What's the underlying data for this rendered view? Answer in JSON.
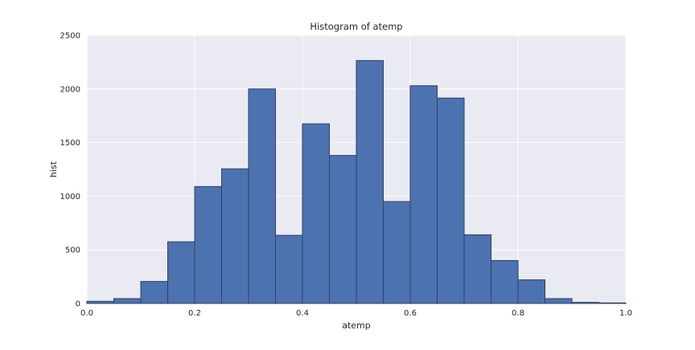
{
  "chart_data": {
    "type": "bar",
    "title": "Histogram of atemp",
    "xlabel": "atemp",
    "ylabel": "hist",
    "xlim": [
      0.0,
      1.0
    ],
    "ylim": [
      0,
      2500
    ],
    "xticks": [
      "0.0",
      "0.2",
      "0.4",
      "0.6",
      "0.8",
      "1.0"
    ],
    "yticks": [
      "0",
      "500",
      "1000",
      "1500",
      "2000",
      "2500"
    ],
    "grid": true,
    "bar_color": "#4c72b0",
    "background_color": "#eaeaf2",
    "bin_edges": [
      0.0,
      0.05,
      0.1,
      0.15,
      0.2,
      0.25,
      0.3,
      0.35,
      0.4,
      0.45,
      0.5,
      0.55,
      0.6,
      0.65,
      0.7,
      0.75,
      0.8,
      0.85,
      0.9,
      0.95,
      1.0
    ],
    "values": [
      20,
      45,
      205,
      575,
      1090,
      1255,
      2000,
      635,
      1675,
      1380,
      2265,
      950,
      2030,
      1915,
      640,
      400,
      220,
      45,
      10,
      5
    ]
  }
}
